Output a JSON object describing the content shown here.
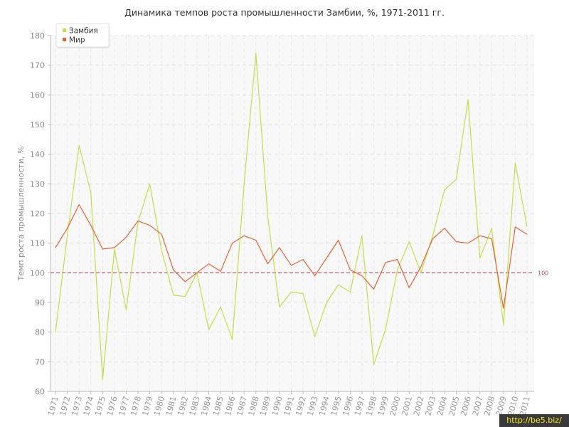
{
  "chart_data": {
    "type": "line",
    "title": "Динамика темпов роста промышленности Замбии, %, 1971-2011 гг.",
    "ylabel": "Темп роста промышленности, %",
    "xlabel": "",
    "ylim": [
      60,
      180
    ],
    "yticks": [
      60,
      70,
      80,
      90,
      100,
      110,
      120,
      130,
      140,
      150,
      160,
      170,
      180
    ],
    "grid": true,
    "legend_position": "top-left",
    "x": [
      1971,
      1972,
      1973,
      1974,
      1975,
      1976,
      1977,
      1978,
      1979,
      1980,
      1981,
      1982,
      1983,
      1984,
      1985,
      1986,
      1987,
      1988,
      1989,
      1990,
      1991,
      1992,
      1993,
      1994,
      1995,
      1996,
      1997,
      1998,
      1999,
      2000,
      2001,
      2002,
      2003,
      2004,
      2005,
      2006,
      2007,
      2008,
      2009,
      2010,
      2011
    ],
    "series": [
      {
        "name": "Замбия",
        "color": "#c4dc50",
        "values": [
          80.0,
          112.5,
          143.0,
          127.0,
          64.0,
          108.0,
          87.5,
          117.0,
          130.0,
          107.5,
          92.5,
          92.0,
          100.0,
          80.8,
          88.5,
          77.5,
          130.0,
          174.0,
          119.0,
          88.5,
          93.5,
          93.0,
          78.5,
          90.0,
          96.0,
          93.5,
          112.5,
          69.0,
          81.0,
          101.0,
          110.5,
          100.0,
          112.5,
          128.0,
          131.5,
          158.5,
          105.0,
          115.0,
          82.5,
          137.0,
          115.5
        ]
      },
      {
        "name": "Мир",
        "color": "#e0643a",
        "values": [
          108.5,
          115.0,
          123.0,
          116.0,
          108.0,
          108.5,
          112.0,
          117.5,
          116.0,
          113.0,
          101.0,
          97.0,
          100.0,
          103.0,
          100.5,
          110.0,
          112.5,
          111.0,
          103.0,
          108.5,
          102.5,
          104.5,
          99.0,
          105.0,
          111.0,
          101.0,
          99.0,
          94.5,
          103.5,
          104.5,
          95.0,
          102.0,
          111.5,
          115.0,
          110.5,
          110.0,
          112.5,
          111.5,
          88.0,
          115.5,
          113.0
        ]
      }
    ],
    "reference_line": {
      "value": 100,
      "label": "100",
      "color": "#a84a5a"
    }
  },
  "watermark": "http://be5.biz/"
}
